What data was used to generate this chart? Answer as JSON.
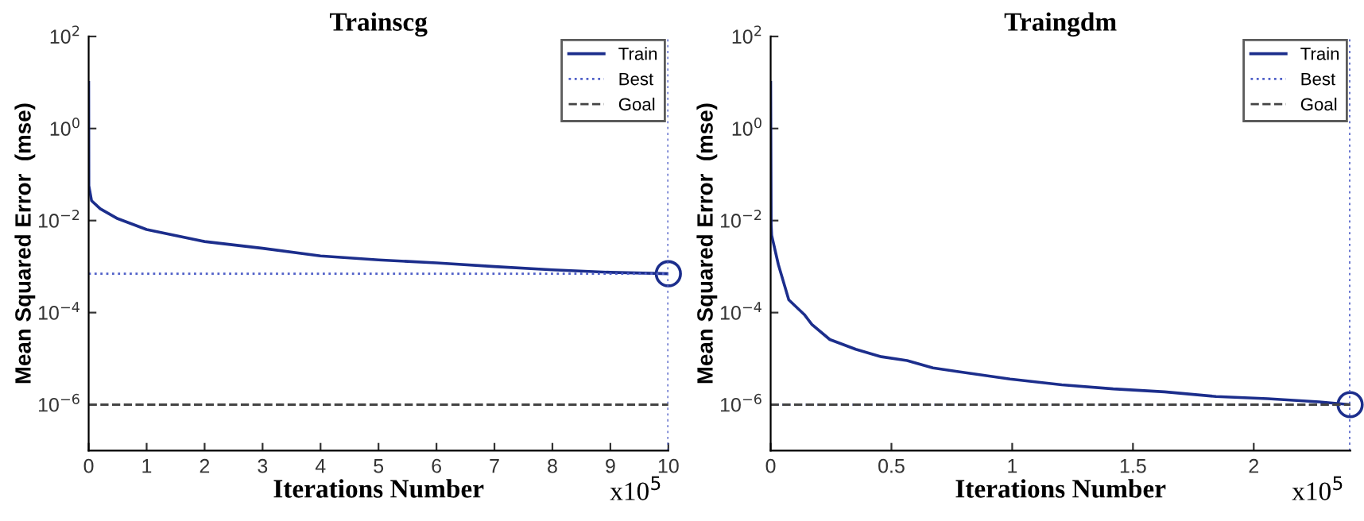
{
  "chart_data": [
    {
      "type": "line",
      "title": "Trainscg",
      "xlabel": "Iterations Number",
      "ylabel": "Mean Squared Error  (mse)",
      "log": "y",
      "legend": "top right",
      "xlim": [
        0,
        10
      ],
      "xticks": [
        0,
        1,
        2,
        3,
        4,
        5,
        6,
        7,
        8,
        9,
        10
      ],
      "ylim": [
        1e-07,
        100
      ],
      "yticks": [
        {
          "value": 1e-06,
          "label": "10$^{−6}$"
        },
        {
          "value": 0.0001,
          "label": "10$^{−4}$"
        },
        {
          "value": 0.01,
          "label": "10$^{−2}$"
        },
        {
          "value": 1,
          "label": "10$^{0}$"
        },
        {
          "value": 100,
          "label": "10$^{2}$"
        }
      ],
      "annotations": [
        "x10$^{5}$"
      ],
      "series": [
        {
          "name": "Train",
          "color": "#1c2e8c",
          "line_style": "solid",
          "x": [
            0,
            0.003,
            0.05,
            0.2,
            0.5,
            1,
            2,
            3,
            4,
            5,
            6,
            7,
            8,
            9,
            10
          ],
          "values": [
            10,
            0.057,
            0.027,
            0.018,
            0.011,
            0.0064,
            0.0035,
            0.0025,
            0.0017,
            0.0014,
            0.0012,
            0.001,
            0.00085,
            0.00075,
            0.0007
          ]
        },
        {
          "type": "scatter",
          "color": "#1c2e8c",
          "marker": "circle",
          "x": [
            10
          ],
          "values": [
            0.0007
          ]
        }
      ],
      "ref_lines": [
        {
          "axis": "y",
          "value": 0.0007,
          "label": "Best",
          "color": "#5060c8",
          "line_style": "dotted"
        },
        {
          "axis": "x",
          "value": 10,
          "label": null,
          "color": "#5060c8",
          "line_style": "dotted"
        },
        {
          "axis": "y",
          "value": 1e-06,
          "label": "Goal",
          "color": "#444444",
          "line_style": "dashed"
        }
      ]
    },
    {
      "type": "line",
      "title": "Traingdm",
      "xlabel": "Iterations Number",
      "ylabel": "Mean Squared Error  (mse)",
      "log": "y",
      "legend": "top right",
      "xlim": [
        0,
        2.4
      ],
      "xticks": [
        0,
        0.5,
        1,
        1.5,
        2
      ],
      "ylim": [
        1e-07,
        100
      ],
      "yticks": [
        {
          "value": 1e-06,
          "label": "10$^{−6}$"
        },
        {
          "value": 0.0001,
          "label": "10$^{−4}$"
        },
        {
          "value": 0.01,
          "label": "10$^{−2}$"
        },
        {
          "value": 1,
          "label": "10$^{0}$"
        },
        {
          "value": 100,
          "label": "10$^{2}$"
        }
      ],
      "annotations": [
        "x10$^{5}$"
      ],
      "series": [
        {
          "name": "Train",
          "color": "#1c2e8c",
          "line_style": "solid",
          "x": [
            0,
            0.002,
            0.004,
            0.032,
            0.075,
            0.139,
            0.171,
            0.245,
            0.352,
            0.458,
            0.565,
            0.672,
            0.778,
            0.991,
            1.205,
            1.418,
            1.631,
            1.844,
            2.058,
            2.271,
            2.399
          ],
          "values": [
            10,
            0.008,
            0.0048,
            0.0011,
            0.00019,
            9.1e-05,
            5.5e-05,
            2.6e-05,
            1.6e-05,
            1.1e-05,
            9.1e-06,
            6.3e-06,
            5.2e-06,
            3.6e-06,
            2.7e-06,
            2.2e-06,
            1.9e-06,
            1.5e-06,
            1.35e-06,
            1.15e-06,
            1e-06
          ]
        },
        {
          "type": "scatter",
          "color": "#1c2e8c",
          "marker": "circle",
          "x": [
            2.399
          ],
          "values": [
            1e-06
          ]
        }
      ],
      "ref_lines": [
        {
          "axis": "y",
          "value": 1e-06,
          "label": "Best",
          "color": "#5060c8",
          "line_style": "dotted"
        },
        {
          "axis": "x",
          "value": 2.399,
          "label": null,
          "color": "#5060c8",
          "line_style": "dotted"
        },
        {
          "axis": "y",
          "value": 1e-06,
          "label": "Goal",
          "color": "#444444",
          "line_style": "dashed"
        }
      ]
    }
  ]
}
